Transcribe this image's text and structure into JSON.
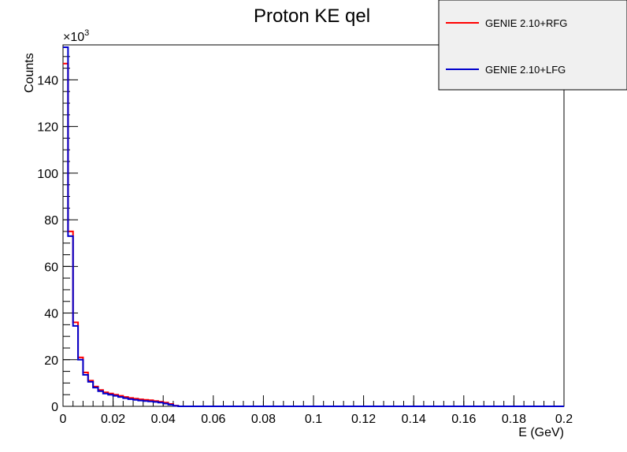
{
  "chart_data": {
    "type": "line",
    "title": "Proton KE qel",
    "xlabel": "E (GeV)",
    "ylabel": "Counts",
    "y_exponent_label": "×10",
    "y_exponent_power": "3",
    "xlim": [
      0,
      0.2
    ],
    "ylim": [
      0,
      155
    ],
    "y_unit_multiplier": 1000,
    "x_ticks": [
      0,
      0.02,
      0.04,
      0.06,
      0.08,
      0.1,
      0.12,
      0.14,
      0.16,
      0.18,
      0.2
    ],
    "x_tick_labels": [
      "0",
      "0.02",
      "0.04",
      "0.06",
      "0.08",
      "0.1",
      "0.12",
      "0.14",
      "0.16",
      "0.18",
      "0.2"
    ],
    "y_ticks": [
      0,
      20,
      40,
      60,
      80,
      100,
      120,
      140
    ],
    "y_tick_labels": [
      "0",
      "20",
      "40",
      "60",
      "80",
      "100",
      "120",
      "140"
    ],
    "bin_width": 0.002,
    "bin_edges_start": 0,
    "grid": false,
    "legend_position": "top-right",
    "series": [
      {
        "name": "GENIE 2.10+RFG",
        "color": "#ff0000",
        "values": [
          147,
          75,
          36,
          21,
          14.5,
          11,
          8.5,
          7,
          6,
          5.5,
          5,
          4.5,
          4,
          3.6,
          3.3,
          3,
          2.8,
          2.6,
          2.3,
          2,
          1.6,
          1,
          0.3,
          0,
          0,
          0,
          0,
          0,
          0,
          0,
          0,
          0,
          0,
          0,
          0,
          0,
          0,
          0,
          0,
          0,
          0,
          0,
          0,
          0,
          0,
          0,
          0,
          0,
          0,
          0,
          0,
          0,
          0,
          0,
          0,
          0,
          0,
          0,
          0,
          0,
          0,
          0,
          0,
          0,
          0,
          0,
          0,
          0,
          0,
          0,
          0,
          0,
          0,
          0,
          0,
          0,
          0,
          0,
          0,
          0,
          0,
          0,
          0,
          0,
          0,
          0,
          0,
          0,
          0,
          0,
          0,
          0,
          0,
          0,
          0,
          0,
          0,
          0,
          0,
          0
        ]
      },
      {
        "name": "GENIE 2.10+LFG",
        "color": "#0000cc",
        "values": [
          154,
          73,
          34.5,
          20,
          13.5,
          10.5,
          8,
          6.5,
          5.5,
          5,
          4.5,
          4,
          3.5,
          3.1,
          2.8,
          2.5,
          2.3,
          2.1,
          1.9,
          1.6,
          1.2,
          0.7,
          0.2,
          0,
          0,
          0,
          0,
          0,
          0,
          0,
          0,
          0,
          0,
          0,
          0,
          0,
          0,
          0,
          0,
          0,
          0,
          0,
          0,
          0,
          0,
          0,
          0,
          0,
          0,
          0,
          0,
          0,
          0,
          0,
          0,
          0,
          0,
          0,
          0,
          0,
          0,
          0,
          0,
          0,
          0,
          0,
          0,
          0,
          0,
          0,
          0,
          0,
          0,
          0,
          0,
          0,
          0,
          0,
          0,
          0,
          0,
          0,
          0,
          0,
          0,
          0,
          0,
          0,
          0,
          0,
          0,
          0,
          0,
          0,
          0,
          0,
          0,
          0,
          0,
          0
        ]
      }
    ]
  }
}
